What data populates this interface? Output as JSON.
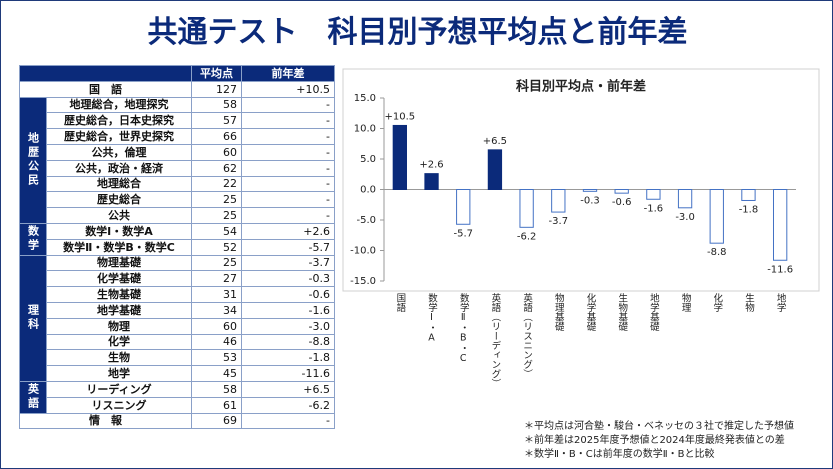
{
  "header": {
    "title": "共通テスト　科目別予想平均点と前年差"
  },
  "table": {
    "columns": [
      "平均点",
      "前年差"
    ],
    "sections": [
      {
        "rows": [
          {
            "subject": "国　語",
            "avg": "127",
            "diff": "+10.5"
          }
        ]
      },
      {
        "group": "地歴公民",
        "rows": [
          {
            "subject": "地理総合，地理探究",
            "avg": "58",
            "diff": "-"
          },
          {
            "subject": "歴史総合，日本史探究",
            "avg": "57",
            "diff": "-"
          },
          {
            "subject": "歴史総合，世界史探究",
            "avg": "66",
            "diff": "-"
          },
          {
            "subject": "公共，倫理",
            "avg": "60",
            "diff": "-"
          },
          {
            "subject": "公共，政治・経済",
            "avg": "62",
            "diff": "-"
          },
          {
            "subject": "地理総合",
            "avg": "22",
            "diff": "-"
          },
          {
            "subject": "歴史総合",
            "avg": "25",
            "diff": "-"
          },
          {
            "subject": "公共",
            "avg": "25",
            "diff": "-"
          }
        ]
      },
      {
        "group": "数学",
        "rows": [
          {
            "subject": "数学Ⅰ・数学A",
            "avg": "54",
            "diff": "+2.6"
          },
          {
            "subject": "数学Ⅱ・数学B・数学C",
            "avg": "52",
            "diff": "-5.7"
          }
        ]
      },
      {
        "group": "理科",
        "rows": [
          {
            "subject": "物理基礎",
            "avg": "25",
            "diff": "-3.7"
          },
          {
            "subject": "化学基礎",
            "avg": "27",
            "diff": "-0.3"
          },
          {
            "subject": "生物基礎",
            "avg": "31",
            "diff": "-0.6"
          },
          {
            "subject": "地学基礎",
            "avg": "34",
            "diff": "-1.6"
          },
          {
            "subject": "物理",
            "avg": "60",
            "diff": "-3.0"
          },
          {
            "subject": "化学",
            "avg": "46",
            "diff": "-8.8"
          },
          {
            "subject": "生物",
            "avg": "53",
            "diff": "-1.8"
          },
          {
            "subject": "地学",
            "avg": "45",
            "diff": "-11.6"
          }
        ]
      },
      {
        "group": "英語",
        "rows": [
          {
            "subject": "リーディング",
            "avg": "58",
            "diff": "+6.5"
          },
          {
            "subject": "リスニング",
            "avg": "61",
            "diff": "-6.2"
          }
        ]
      },
      {
        "rows": [
          {
            "subject": "情　報",
            "avg": "69",
            "diff": "-"
          }
        ]
      }
    ]
  },
  "chart_data": {
    "type": "bar",
    "title": "科目別平均点・前年差",
    "categories": [
      "国語",
      "数学Ⅰ・A",
      "数学Ⅱ・B・C",
      "英語（リーディング）",
      "英語（リスニング）",
      "物理基礎",
      "化学基礎",
      "生物基礎",
      "地学基礎",
      "物理",
      "化学",
      "生物",
      "地学"
    ],
    "values": [
      10.5,
      2.6,
      -5.7,
      6.5,
      -6.2,
      -3.7,
      -0.3,
      -0.6,
      -1.6,
      -3.0,
      -8.8,
      -1.8,
      -11.6
    ],
    "value_labels": [
      "+10.5",
      "+2.6",
      "-5.7",
      "+6.5",
      "-6.2",
      "-3.7",
      "-0.3",
      "-0.6",
      "-1.6",
      "-3.0",
      "-8.8",
      "-1.8",
      "-11.6"
    ],
    "positive_color": "#0b2a7a",
    "negative_color": "#4472c4",
    "ylim": [
      -15,
      15
    ],
    "yticks": [
      {
        "value": -15,
        "label": "-15.0"
      },
      {
        "value": -10,
        "label": "-10.0"
      },
      {
        "value": -5,
        "label": "-5.0"
      },
      {
        "value": 0,
        "label": "0.0"
      },
      {
        "value": 5,
        "label": "5.0"
      },
      {
        "value": 10,
        "label": "10.0"
      },
      {
        "value": 15,
        "label": "15.0"
      }
    ]
  },
  "notes": [
    "＊平均点は河合塾・駿台・ベネッセの３社で推定した予想値",
    "＊前年差は2025年度予想値と2024年度最終発表値との差",
    "＊数学Ⅱ・B・Cは前年度の数学Ⅱ・Bと比較"
  ]
}
